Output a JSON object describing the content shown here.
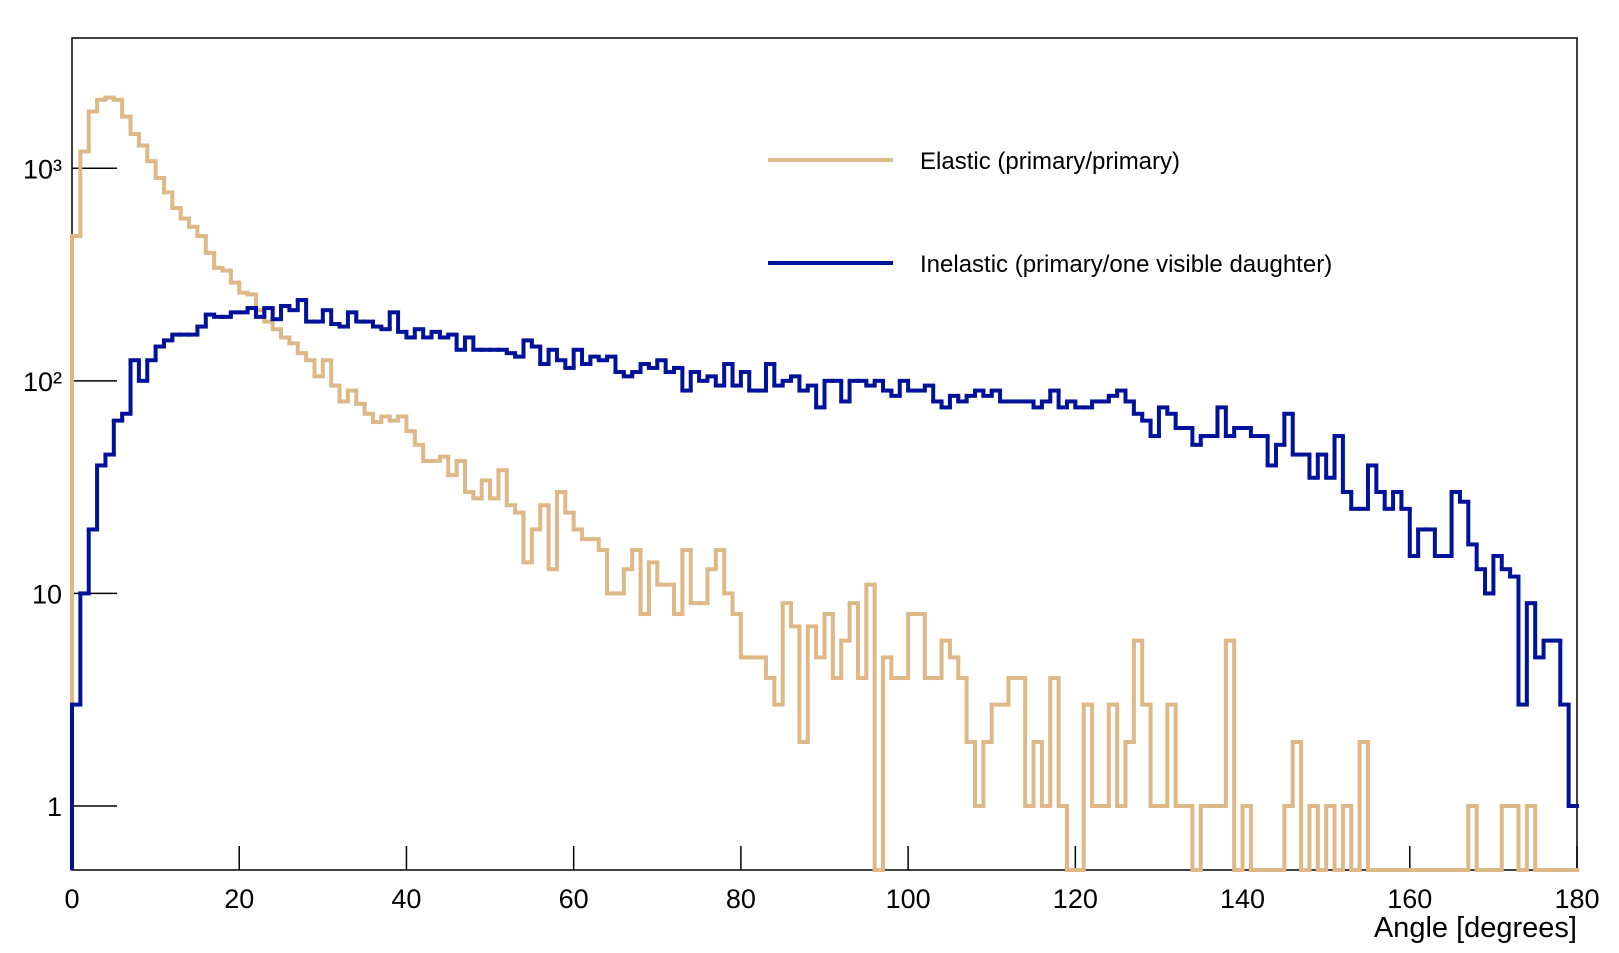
{
  "chart_data": {
    "type": "histogram",
    "x_label": "Angle [degrees]",
    "log_y": true,
    "xlim": [
      0,
      180
    ],
    "xticks": [
      0,
      20,
      40,
      60,
      80,
      100,
      120,
      140,
      160,
      180
    ],
    "ylim": [
      0.5,
      4100
    ],
    "yticks": [
      1,
      10,
      {
        "value": 100,
        "label": "10²"
      },
      {
        "value": 1000,
        "label": "10³"
      }
    ],
    "legend": "top-right",
    "bins": [
      0,
      1,
      2,
      3,
      4,
      5,
      6,
      7,
      8,
      9,
      10,
      11,
      12,
      13,
      14,
      15,
      16,
      17,
      18,
      19,
      20,
      21,
      22,
      23,
      24,
      25,
      26,
      27,
      28,
      29,
      30,
      31,
      32,
      33,
      34,
      35,
      36,
      37,
      38,
      39,
      40,
      41,
      42,
      43,
      44,
      45,
      46,
      47,
      48,
      49,
      50,
      51,
      52,
      53,
      54,
      55,
      56,
      57,
      58,
      59,
      60,
      61,
      62,
      63,
      64,
      65,
      66,
      67,
      68,
      69,
      70,
      71,
      72,
      73,
      74,
      75,
      76,
      77,
      78,
      79,
      80,
      81,
      82,
      83,
      84,
      85,
      86,
      87,
      88,
      89,
      90,
      91,
      92,
      93,
      94,
      95,
      96,
      97,
      98,
      99,
      100,
      101,
      102,
      103,
      104,
      105,
      106,
      107,
      108,
      109,
      110,
      111,
      112,
      113,
      114,
      115,
      116,
      117,
      118,
      119,
      120,
      121,
      122,
      123,
      124,
      125,
      126,
      127,
      128,
      129,
      130,
      131,
      132,
      133,
      134,
      135,
      136,
      137,
      138,
      139,
      140,
      141,
      142,
      143,
      144,
      145,
      146,
      147,
      148,
      149,
      150,
      151,
      152,
      153,
      154,
      155,
      156,
      157,
      158,
      159,
      160,
      161,
      162,
      163,
      164,
      165,
      166,
      167,
      168,
      169,
      170,
      171,
      172,
      173,
      174,
      175,
      176,
      177,
      178,
      179,
      180
    ],
    "series": [
      {
        "name": "Elastic (primary/primary)",
        "color": "#deb887",
        "values": [
          480,
          1200,
          1850,
          2100,
          2150,
          2100,
          1750,
          1450,
          1280,
          1080,
          900,
          770,
          650,
          580,
          530,
          480,
          400,
          340,
          330,
          290,
          260,
          255,
          215,
          190,
          175,
          160,
          150,
          135,
          125,
          105,
          125,
          95,
          80,
          90,
          78,
          70,
          64,
          68,
          65,
          68,
          58,
          50,
          42,
          42,
          44,
          36,
          42,
          30,
          28,
          34,
          28,
          38,
          26,
          24,
          14,
          20,
          26,
          13,
          30,
          24,
          20,
          18,
          18,
          16,
          10,
          10,
          13,
          16,
          8,
          14,
          11,
          11,
          8,
          16,
          9,
          9,
          13,
          16,
          10,
          8,
          5,
          5,
          5,
          4,
          3,
          9,
          7,
          2,
          7,
          5,
          8,
          4,
          6,
          9,
          4,
          11,
          0,
          5,
          4,
          4,
          8,
          8,
          4,
          4,
          6,
          5,
          4,
          2,
          1,
          2,
          3,
          3,
          4,
          4,
          1,
          2,
          1,
          4,
          1,
          0,
          0,
          3,
          1,
          1,
          3,
          1,
          2,
          6,
          3,
          1,
          1,
          3,
          1,
          1,
          0,
          1,
          1,
          1,
          6,
          0,
          1,
          0,
          0,
          0,
          0,
          1,
          2,
          0,
          1,
          0,
          1,
          0,
          1,
          0,
          2,
          0,
          0,
          0,
          0,
          0,
          0,
          0,
          0,
          0,
          0,
          0,
          0,
          1,
          0,
          0,
          0,
          1,
          1,
          0,
          1,
          0,
          0,
          0,
          0,
          0
        ]
      },
      {
        "name": "Inelastic (primary/one visible daughter)",
        "color": "#00129a",
        "values": [
          3,
          10,
          20,
          40,
          45,
          65,
          70,
          125,
          100,
          125,
          145,
          155,
          165,
          165,
          165,
          180,
          205,
          200,
          200,
          210,
          210,
          220,
          200,
          220,
          195,
          225,
          215,
          240,
          190,
          190,
          215,
          185,
          180,
          210,
          190,
          190,
          180,
          175,
          210,
          170,
          160,
          175,
          160,
          170,
          160,
          165,
          140,
          160,
          140,
          140,
          140,
          140,
          135,
          130,
          155,
          145,
          120,
          140,
          125,
          115,
          140,
          120,
          130,
          125,
          130,
          110,
          105,
          110,
          120,
          115,
          125,
          110,
          115,
          90,
          110,
          100,
          105,
          95,
          120,
          95,
          110,
          90,
          90,
          120,
          95,
          100,
          105,
          90,
          95,
          75,
          100,
          100,
          80,
          100,
          100,
          95,
          100,
          90,
          85,
          100,
          90,
          90,
          95,
          80,
          75,
          85,
          80,
          85,
          90,
          85,
          90,
          80,
          80,
          80,
          80,
          75,
          80,
          90,
          75,
          80,
          75,
          75,
          80,
          80,
          85,
          90,
          80,
          70,
          65,
          55,
          75,
          70,
          60,
          60,
          50,
          55,
          55,
          75,
          55,
          60,
          60,
          55,
          55,
          40,
          50,
          70,
          45,
          45,
          35,
          45,
          35,
          55,
          30,
          25,
          25,
          40,
          30,
          25,
          30,
          25,
          15,
          20,
          20,
          15,
          15,
          30,
          27,
          17,
          13,
          10,
          15,
          13,
          12,
          3,
          9,
          5,
          6,
          6,
          3,
          1
        ]
      }
    ]
  }
}
